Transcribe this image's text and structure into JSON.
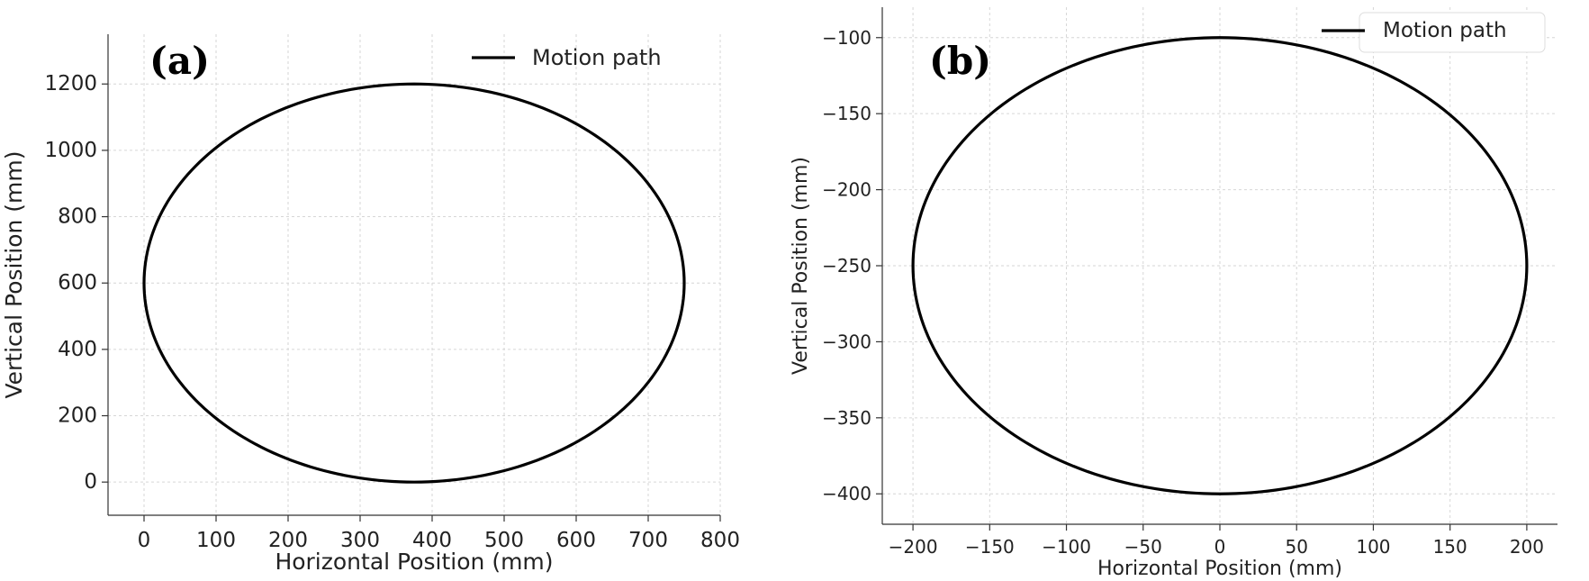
{
  "chart_data": [
    {
      "type": "line",
      "panel_label": "(a)",
      "xlabel": "Horizontal Position (mm)",
      "ylabel": "Vertical Position (mm)",
      "xlim": [
        -50,
        800
      ],
      "ylim": [
        -100,
        1350
      ],
      "xticks": [
        0,
        100,
        200,
        300,
        400,
        500,
        600,
        700,
        800
      ],
      "yticks": [
        0,
        200,
        400,
        600,
        800,
        1000,
        1200
      ],
      "xtick_labels": [
        "0",
        "100",
        "200",
        "300",
        "400",
        "500",
        "600",
        "700",
        "800"
      ],
      "ytick_labels": [
        "0",
        "200",
        "400",
        "600",
        "800",
        "1000",
        "1200"
      ],
      "grid": true,
      "legend_position": "top-right",
      "legend_frame": false,
      "series": [
        {
          "name": "Motion path",
          "shape": "ellipse",
          "center": [
            375,
            600
          ],
          "radius_x": 375,
          "radius_y": 600,
          "color": "#000000"
        }
      ]
    },
    {
      "type": "line",
      "panel_label": "(b)",
      "xlabel": "Horizontal Position (mm)",
      "ylabel": "Vertical Position (mm)",
      "xlim": [
        -220,
        220
      ],
      "ylim": [
        -420,
        -80
      ],
      "xticks": [
        -200,
        -150,
        -100,
        -50,
        0,
        50,
        100,
        150,
        200
      ],
      "yticks": [
        -400,
        -350,
        -300,
        -250,
        -200,
        -150,
        -100
      ],
      "xtick_labels": [
        "−200",
        "−150",
        "−100",
        "−50",
        "0",
        "50",
        "100",
        "150",
        "200"
      ],
      "ytick_labels": [
        "−400",
        "−350",
        "−300",
        "−250",
        "−200",
        "−150",
        "−100"
      ],
      "grid": true,
      "legend_position": "top-right",
      "legend_frame": true,
      "series": [
        {
          "name": "Motion path",
          "shape": "ellipse",
          "center": [
            0,
            -250
          ],
          "radius_x": 200,
          "radius_y": 150,
          "color": "#000000"
        }
      ]
    }
  ]
}
